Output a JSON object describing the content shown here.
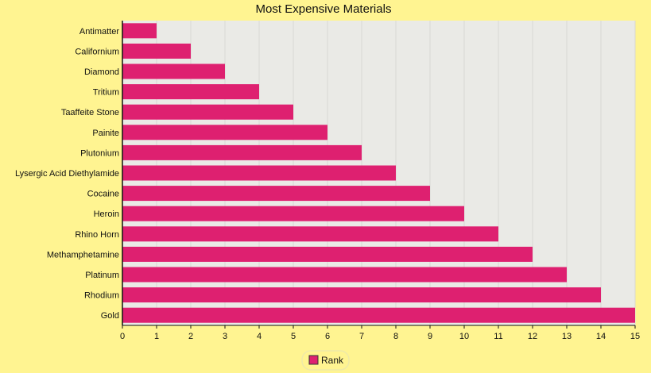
{
  "chart_data": {
    "type": "bar",
    "orientation": "horizontal",
    "title": "Most Expensive Materials",
    "xlabel": "",
    "ylabel": "",
    "categories": [
      "Antimatter",
      "Californium",
      "Diamond",
      "Tritium",
      "Taaffeite Stone",
      "Painite",
      "Plutonium",
      "Lysergic Acid Diethylamide",
      "Cocaine",
      "Heroin",
      "Rhino Horn",
      "Methamphetamine",
      "Platinum",
      "Rhodium",
      "Gold"
    ],
    "series": [
      {
        "name": "Rank",
        "values": [
          1,
          2,
          3,
          4,
          5,
          6,
          7,
          8,
          9,
          10,
          11,
          12,
          13,
          14,
          15
        ],
        "color": "#de2070"
      }
    ],
    "xlim": [
      0,
      15
    ],
    "xticks": [
      "0",
      "1",
      "2",
      "3",
      "4",
      "5",
      "6",
      "7",
      "8",
      "9",
      "10",
      "11",
      "12",
      "13",
      "14",
      "15"
    ],
    "grid": true,
    "legend": {
      "placement": "bottom-center",
      "entries": [
        "Rank"
      ]
    },
    "colors": {
      "background": "#fff491",
      "plot_background": "#eaeae6",
      "gridline": "#d8d8d4",
      "bar": "#de2070"
    }
  }
}
